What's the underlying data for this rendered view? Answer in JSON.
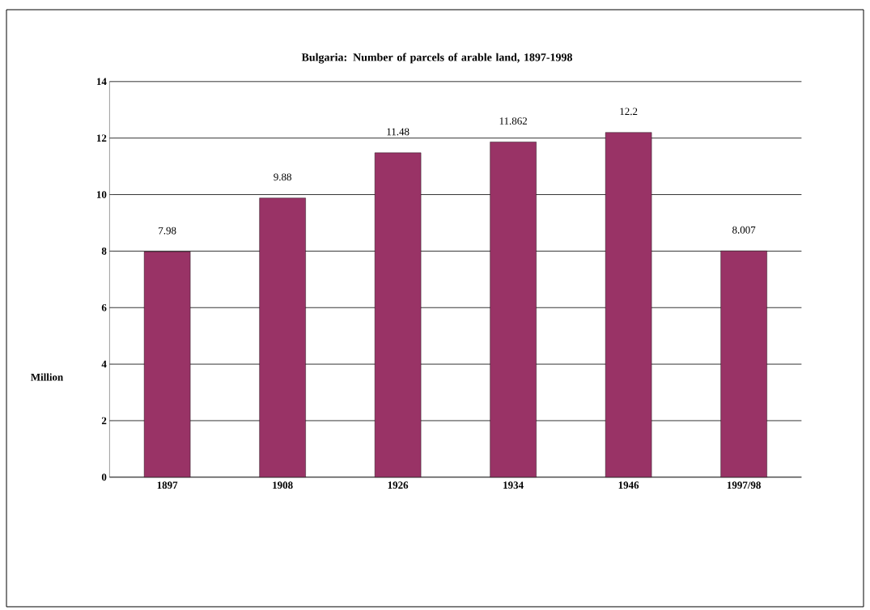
{
  "chart_data": {
    "type": "bar",
    "title": "Bulgaria: Number of parcels of arable land, 1897-1998",
    "ylabel": "Million",
    "categories": [
      "1897",
      "1908",
      "1926",
      "1934",
      "1946",
      "1997/98"
    ],
    "values": [
      7.98,
      9.88,
      11.48,
      11.862,
      12.2,
      8.007
    ],
    "color": "#993366",
    "ylim": [
      0,
      14
    ],
    "yticks": [
      0,
      2,
      4,
      6,
      8,
      10,
      12,
      14
    ],
    "grid": "y",
    "data_labels": true
  }
}
